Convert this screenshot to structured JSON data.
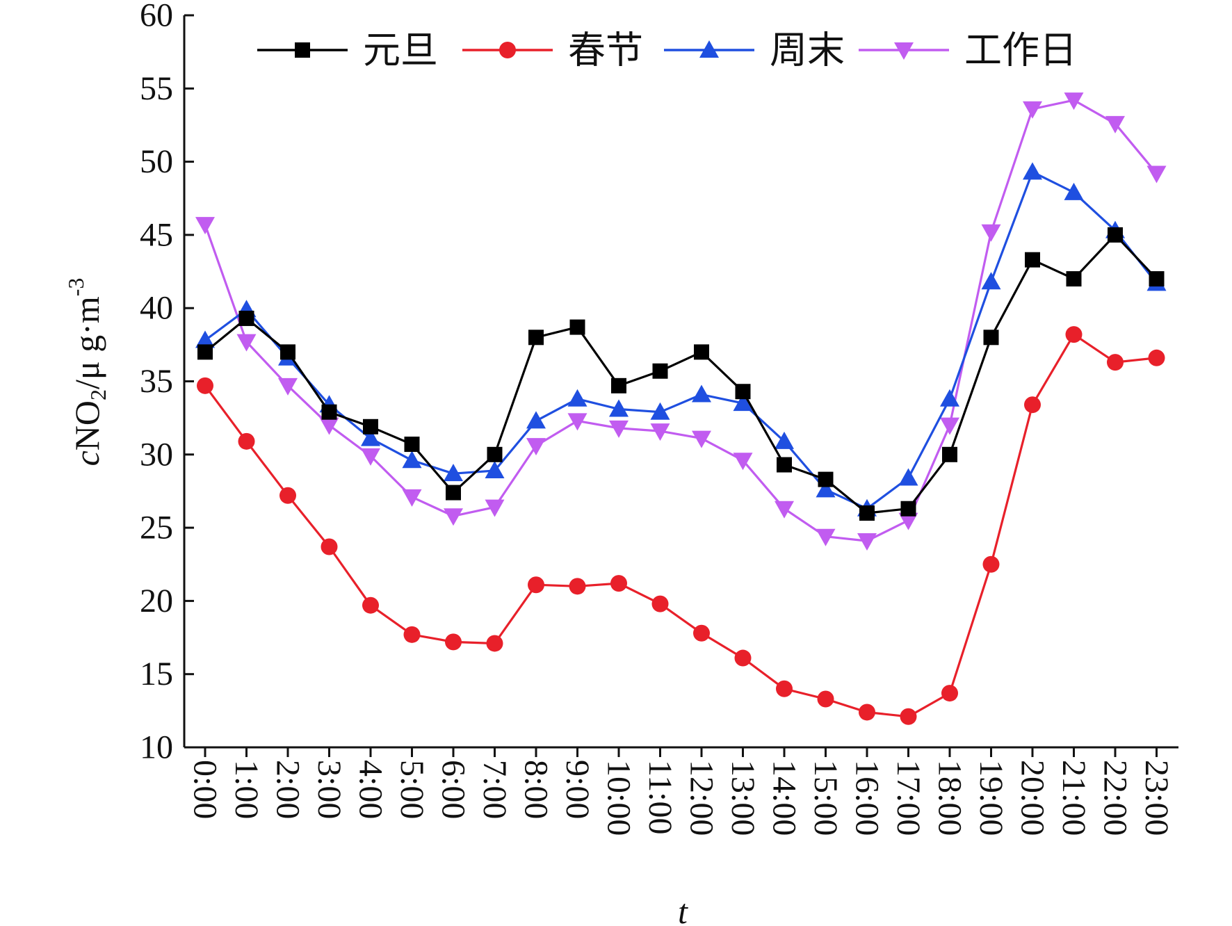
{
  "chart_data": {
    "type": "line",
    "xlabel": "t",
    "ylabel": {
      "italic": "c",
      "main": "NO",
      "sub": "2",
      "unit": "/μ g·m",
      "sup": "-3"
    },
    "ylim": [
      10,
      60
    ],
    "yticks": [
      "10",
      "15",
      "20",
      "25",
      "30",
      "35",
      "40",
      "45",
      "50",
      "55",
      "60"
    ],
    "categories": [
      "0:00",
      "1:00",
      "2:00",
      "3:00",
      "4:00",
      "5:00",
      "6:00",
      "7:00",
      "8:00",
      "9:00",
      "10:00",
      "11:00",
      "12:00",
      "13:00",
      "14:00",
      "15:00",
      "16:00",
      "17:00",
      "18:00",
      "19:00",
      "20:00",
      "21:00",
      "22:00",
      "23:00"
    ],
    "grid": false,
    "legend_position": "top",
    "series": [
      {
        "name": "元旦",
        "color": "#000000",
        "marker": "square",
        "values": [
          37.0,
          39.3,
          37.0,
          32.9,
          31.9,
          30.7,
          27.4,
          30.0,
          38.0,
          38.7,
          34.7,
          35.7,
          37.0,
          34.3,
          29.3,
          28.3,
          26.0,
          26.3,
          30.0,
          38.0,
          43.3,
          42.0,
          45.0,
          42.0
        ]
      },
      {
        "name": "春节",
        "color": "#e8202a",
        "marker": "circle",
        "values": [
          34.7,
          30.9,
          27.2,
          23.7,
          19.7,
          17.7,
          17.2,
          17.1,
          21.1,
          21.0,
          21.2,
          19.8,
          17.8,
          16.1,
          14.0,
          13.3,
          12.4,
          12.1,
          13.7,
          22.5,
          33.4,
          38.2,
          36.3,
          36.6
        ]
      },
      {
        "name": "周末",
        "color": "#1f4fe0",
        "marker": "triangle-up",
        "values": [
          37.8,
          39.9,
          36.6,
          33.4,
          31.1,
          29.6,
          28.7,
          28.9,
          32.3,
          33.8,
          33.1,
          32.9,
          34.1,
          33.5,
          30.9,
          27.6,
          26.3,
          28.4,
          33.8,
          41.8,
          49.3,
          47.9,
          45.3,
          41.7
        ]
      },
      {
        "name": "工作日",
        "color": "#c15cf0",
        "marker": "triangle-down",
        "values": [
          45.7,
          37.7,
          34.7,
          32.0,
          29.9,
          27.1,
          25.8,
          26.4,
          30.6,
          32.3,
          31.8,
          31.6,
          31.1,
          29.6,
          26.3,
          24.4,
          24.1,
          25.5,
          32.0,
          45.2,
          53.6,
          54.2,
          52.6,
          49.2
        ]
      }
    ]
  }
}
